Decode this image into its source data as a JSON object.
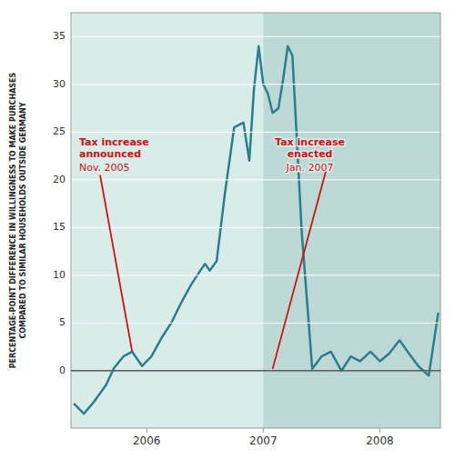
{
  "chart_data": {
    "type": "line",
    "y_label": "PERCENTAGE-POINT DIFFERENCE IN WILLINGNESS TO MAKE PURCHASES\nCOMPARED TO SIMILAR HOUSEHOLDS OUTSIDE GERMANY",
    "x": [
      2005.38,
      2005.46,
      2005.55,
      2005.65,
      2005.72,
      2005.8,
      2005.875,
      2005.96,
      2006.04,
      2006.13,
      2006.21,
      2006.29,
      2006.38,
      2006.46,
      2006.5,
      2006.54,
      2006.6,
      2006.67,
      2006.75,
      2006.83,
      2006.88,
      2006.92,
      2006.96,
      2007.0,
      2007.04,
      2007.08,
      2007.13,
      2007.17,
      2007.21,
      2007.25,
      2007.33,
      2007.42,
      2007.5,
      2007.58,
      2007.67,
      2007.75,
      2007.83,
      2007.92,
      2008.0,
      2008.08,
      2008.17,
      2008.25,
      2008.33,
      2008.42,
      2008.5
    ],
    "values": [
      -3.5,
      -4.5,
      -3.2,
      -1.5,
      0.3,
      1.5,
      2.0,
      0.5,
      1.5,
      3.5,
      5.0,
      7.0,
      9.0,
      10.5,
      11.2,
      10.5,
      11.5,
      18.5,
      25.5,
      26.0,
      22.0,
      29.5,
      34.0,
      30.0,
      29.0,
      27.0,
      27.5,
      30.5,
      34.0,
      33.0,
      14.5,
      0.2,
      1.5,
      2.0,
      0.0,
      1.5,
      1.0,
      2.0,
      1.0,
      1.8,
      3.2,
      1.8,
      0.5,
      -0.5,
      6.0
    ],
    "color": "#2a7f8f",
    "xlim": [
      2005.35,
      2008.52
    ],
    "ylim": [
      -6.0,
      37.5
    ],
    "xticks": [
      2006,
      2007,
      2008
    ],
    "yticks": [
      0,
      5,
      10,
      15,
      20,
      25,
      30,
      35
    ],
    "grid": true,
    "shade": {
      "x": [
        2007.0,
        2008.52
      ],
      "color": "#bdd9d5",
      "background": "#daecea"
    },
    "annotations": [
      {
        "text": "Tax increase\nannounced",
        "subtext": "Nov. 2005",
        "x": 2005.42,
        "y": 24.5,
        "line": [
          [
            2005.6,
            20.5
          ],
          [
            2005.875,
            2.0
          ]
        ],
        "color": "#cc1111",
        "align": "left"
      },
      {
        "text": "Tax increase\nenacted",
        "subtext": "Jan. 2007",
        "x": 2007.4,
        "y": 24.5,
        "line": [
          [
            2007.55,
            21.5
          ],
          [
            2007.08,
            0.2
          ]
        ],
        "color": "#cc1111",
        "align": "center"
      }
    ]
  }
}
